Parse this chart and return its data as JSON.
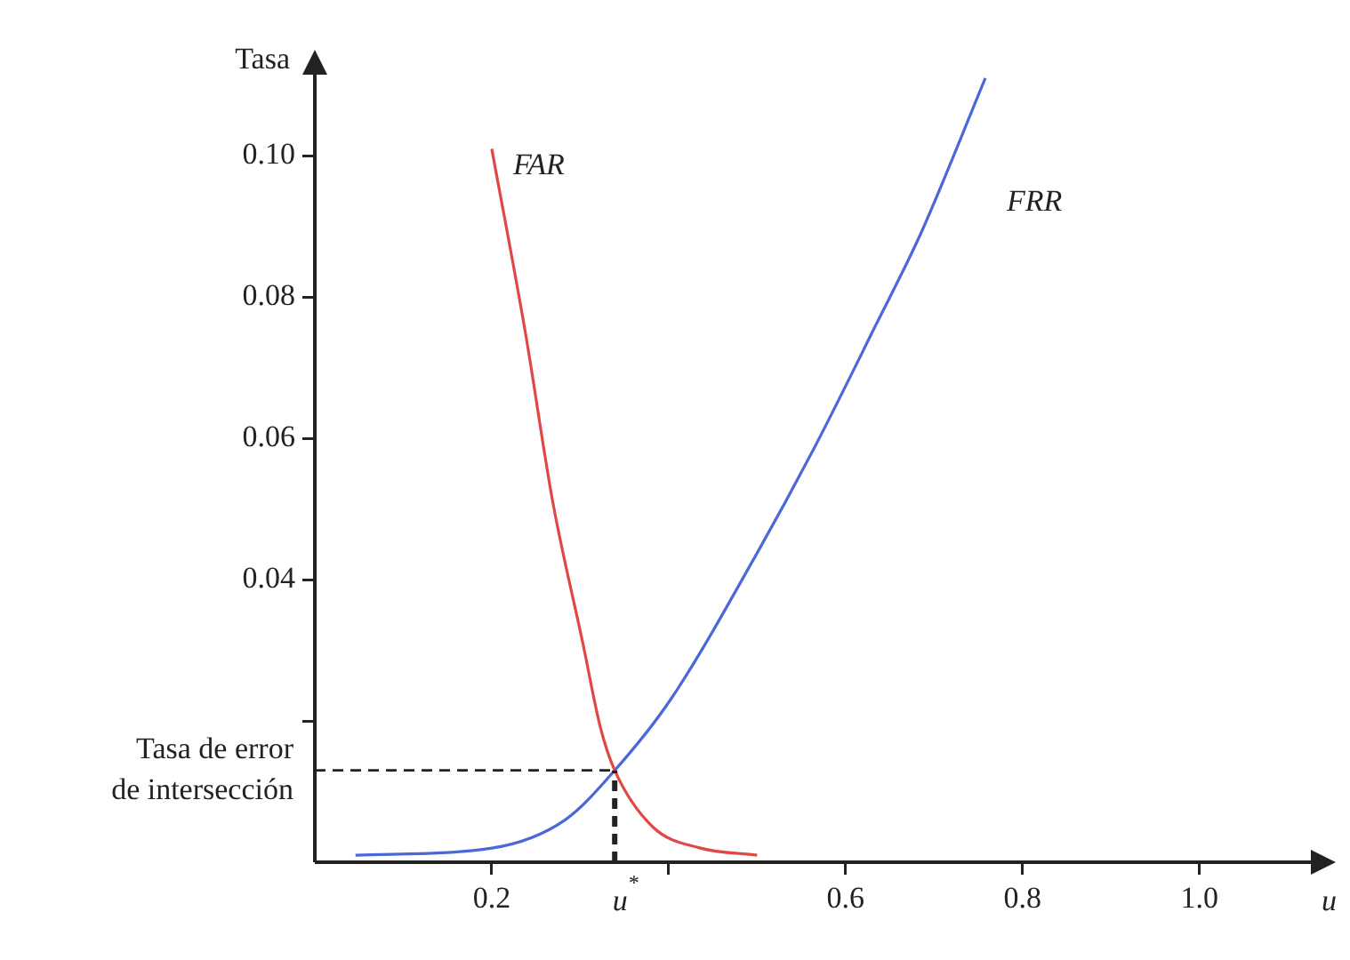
{
  "chart_data": {
    "type": "line",
    "xlabel": "u",
    "ylabel": "Tasa",
    "xlim": [
      0,
      1.13
    ],
    "ylim": [
      0,
      0.112
    ],
    "xticks": [
      0.2,
      {
        "value": 0.4,
        "label": null
      },
      0.6,
      0.8,
      {
        "value": 1,
        "label": "1.0"
      }
    ],
    "yticks": [
      {
        "value": 0.02,
        "label": null
      },
      0.04,
      0.06,
      0.08,
      {
        "value": 0.1,
        "label": "0.10"
      }
    ],
    "series": [
      {
        "name": "FAR",
        "color": "#e04848",
        "x": [
          0.2,
          0.238,
          0.269,
          0.303,
          0.323,
          0.339,
          0.382,
          0.436,
          0.5
        ],
        "values": [
          0.101,
          0.075,
          0.051,
          0.031,
          0.019,
          0.013,
          0.005,
          0.002,
          0.001
        ]
      },
      {
        "name": "FRR",
        "color": "#4a68d8",
        "x": [
          0.046,
          0.2,
          0.283,
          0.339,
          0.402,
          0.501,
          0.566,
          0.634,
          0.685,
          0.758
        ],
        "values": [
          0.001,
          0.002,
          0.006,
          0.013,
          0.023,
          0.044,
          0.059,
          0.076,
          0.089,
          0.111
        ]
      }
    ],
    "ref_lines": [
      {
        "axis": "y",
        "value": 0.013,
        "label": "Tasa de error de intersección",
        "line_style": "dashed",
        "color": "#222222"
      },
      {
        "axis": "x",
        "value": 0.339,
        "label": "u$^{*}$",
        "line_style": "dashed",
        "color": "#222222"
      }
    ],
    "marker": "none",
    "line_style": "solid",
    "grid": false,
    "legend": false
  }
}
